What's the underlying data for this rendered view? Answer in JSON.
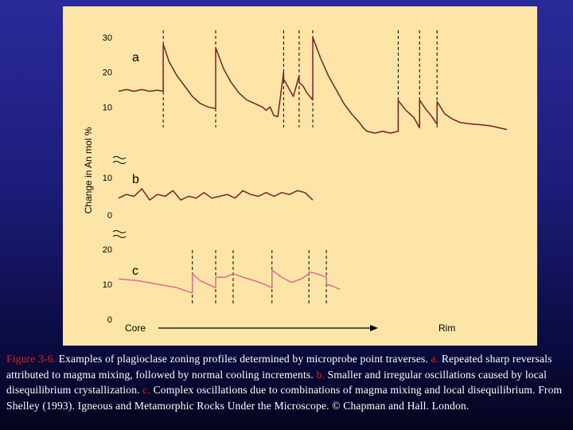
{
  "chart_data": {
    "type": "line",
    "ylabel": "Change in An mol %",
    "x_start_label": "Core",
    "x_end_label": "Rim",
    "colors": {
      "panel_bg": "#fce5a6",
      "profile_ab": "#7a1e2a",
      "profile_c": "#e06a92",
      "text": "#000000"
    },
    "x_range": [
      0,
      100
    ],
    "panels": [
      {
        "label": "a",
        "y_ticks": [
          10,
          20,
          30
        ],
        "ylim": [
          0,
          32
        ],
        "reversal_markers_x": [
          11.5,
          25,
          42.5,
          46.5,
          50,
          72,
          77.5,
          82
        ],
        "series": {
          "x": [
            0,
            2,
            4,
            6,
            8,
            10,
            11.5,
            11.5,
            13,
            15,
            17,
            19,
            21,
            23,
            25,
            25,
            27,
            29,
            31,
            33,
            35,
            37,
            38,
            39,
            40,
            41,
            42.5,
            42.5,
            43.5,
            45,
            46.5,
            46.5,
            47.5,
            48.5,
            50,
            50,
            52,
            54,
            56,
            58,
            60,
            62,
            63,
            64,
            66,
            68,
            70,
            72,
            72,
            74,
            76,
            77.5,
            77.5,
            79,
            80.5,
            82,
            82,
            84,
            86,
            88,
            90,
            92,
            94,
            96,
            98,
            100
          ],
          "y": [
            14.5,
            15,
            14.5,
            15,
            14.5,
            14.8,
            14.5,
            28,
            23,
            19,
            16,
            13,
            11,
            10,
            9.5,
            27,
            21,
            17,
            14,
            12,
            11,
            10,
            9,
            10,
            7.5,
            7.2,
            20,
            18,
            16,
            13,
            19,
            17,
            16,
            14,
            12,
            30,
            24,
            19,
            15,
            11,
            8,
            5.5,
            4,
            3,
            2.5,
            3,
            2.5,
            3,
            11.8,
            9,
            7,
            4,
            12,
            9.5,
            7.5,
            5,
            11.5,
            8,
            6.5,
            5.5,
            5.2,
            5,
            4.8,
            4.5,
            4,
            3.5
          ]
        }
      },
      {
        "label": "b",
        "y_ticks": [
          0,
          10
        ],
        "ylim": [
          0,
          10
        ],
        "series": {
          "x": [
            0,
            2,
            4,
            6,
            8,
            10,
            12,
            14,
            16,
            18,
            20,
            22,
            24,
            26,
            28,
            30,
            32,
            34,
            36,
            38,
            40,
            42,
            44,
            46,
            48,
            50
          ],
          "y": [
            4.5,
            5.5,
            5,
            7,
            4,
            5.5,
            5,
            6.5,
            4,
            5,
            4.5,
            6,
            4.5,
            5,
            5.5,
            4.5,
            6.5,
            5.5,
            5,
            6,
            5,
            6,
            5.5,
            6.5,
            6,
            4
          ]
        }
      },
      {
        "label": "c",
        "y_ticks": [
          0,
          10,
          20
        ],
        "ylim": [
          0,
          22
        ],
        "reversal_markers_x": [
          19,
          25,
          29.5,
          39.5,
          49,
          53.5
        ],
        "series": {
          "x": [
            0,
            5,
            10,
            15,
            19,
            19,
            21,
            23,
            25,
            25,
            27.5,
            29.5,
            29.5,
            32,
            35,
            37.5,
            39.5,
            39.5,
            42,
            44.5,
            47,
            49,
            49,
            51,
            53.5,
            53.5,
            55,
            57
          ],
          "y": [
            11.5,
            11,
            10,
            9,
            7.5,
            13,
            11,
            10,
            9,
            12,
            12,
            13,
            13,
            12,
            11,
            10,
            9,
            14,
            12,
            10.5,
            11.5,
            13,
            13.5,
            13,
            12,
            10,
            9.5,
            8.5
          ]
        }
      }
    ]
  },
  "caption": {
    "lead": "Figure 3-6.",
    "part1": " Examples of plagioclase zoning profiles determined by microprobe point traverses.      ",
    "tag_a": "a.",
    "part2": " Repeated sharp reversals attributed to magma mixing, followed by normal cooling increments.  ",
    "tag_b": "b.",
    "part3": " Smaller and irregular oscillations caused by local disequilibrium crystallization. ",
    "tag_c": "c.",
    "part4": " Complex oscillations due to combinations of magma mixing and local disequilibrium. From Shelley (1993). Igneous and Metamorphic Rocks Under the Microscope. © Chapman and Hall. London."
  }
}
